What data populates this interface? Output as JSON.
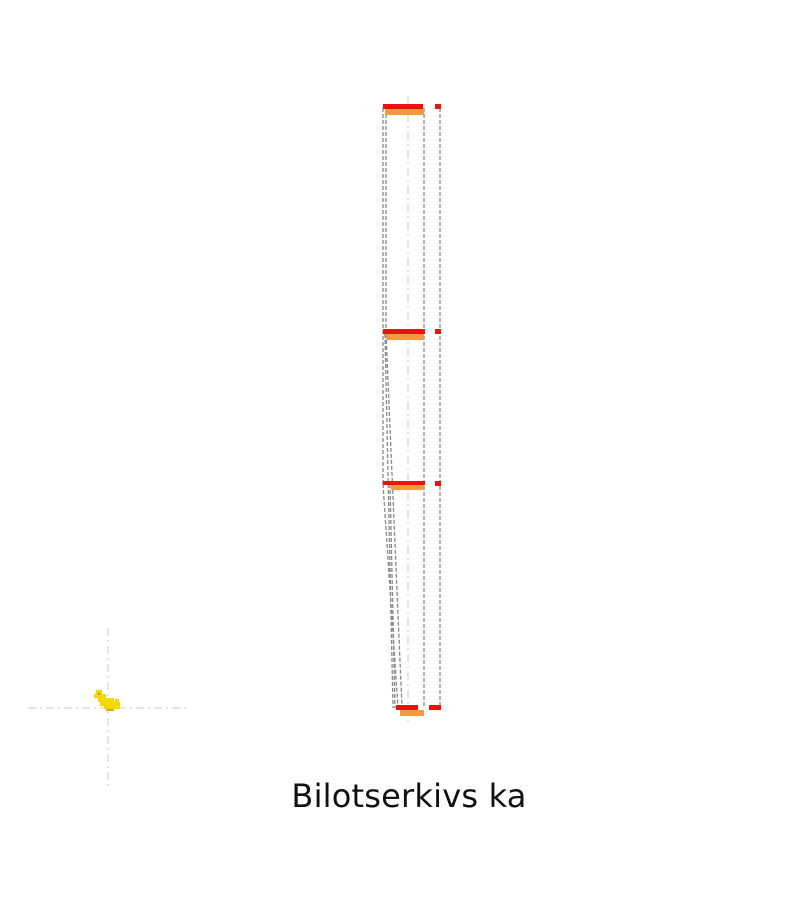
{
  "caption": "Bilotserkivs ka",
  "colors": {
    "accent_red": "#ee1111",
    "accent_orange": "#f59a3c",
    "dash_gray": "#888888",
    "axis_gray": "#cccccc",
    "marker_yellow": "#f5d800",
    "marker_shadow": "#d8b400"
  },
  "icons": {
    "location_marker": "yellow-creature-icon"
  }
}
